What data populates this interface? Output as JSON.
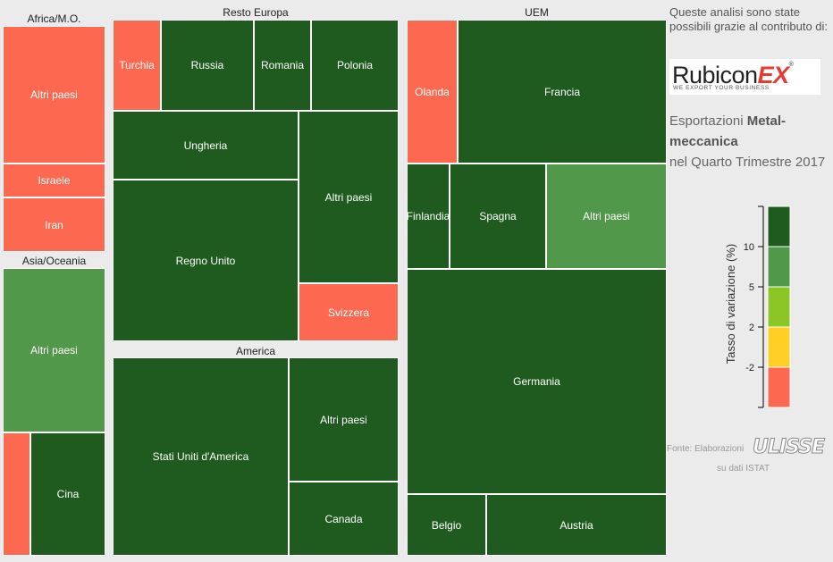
{
  "sidebar": {
    "intro": "Queste analisi sono state possibili grazie al contributo di:",
    "logo": {
      "word": "Rubicon",
      "ex": "EX",
      "reg": "®",
      "tagline": "WE EXPORT YOUR BUSINESS"
    },
    "title_pre": "Esportazioni ",
    "title_bold": "Metal-meccanica",
    "title_post": "nel Quarto Trimestre 2017",
    "source_prefix": "Fonte: Elaborazioni",
    "source_brand": "ULISSE",
    "source_suffix": "su dati ISTAT"
  },
  "colors": {
    "dark_green": "#1f5a1f",
    "mid_green": "#52984a",
    "light_green": "#8cc526",
    "yellow": "#ffcf26",
    "red": "#fd6950",
    "background": "#ebebeb"
  },
  "chart_data": {
    "type": "treemap",
    "measure": "Esportazioni Metal-meccanica, Quarto Trimestre 2017",
    "color_scale": {
      "label": "Tasso di variazione (%)",
      "ticks": [
        "10",
        "5",
        "2",
        "-2"
      ],
      "bands": [
        {
          "range": "> 10",
          "color": "#1f5a1f"
        },
        {
          "range": "5 – 10",
          "color": "#52984a"
        },
        {
          "range": "2 – 5",
          "color": "#8cc526"
        },
        {
          "range": "-2 – 2",
          "color": "#ffcf26"
        },
        {
          "range": "< -2",
          "color": "#fd6950"
        }
      ]
    },
    "groups": [
      {
        "name": "Africa/M.O.",
        "items": [
          {
            "label": "Altri paesi",
            "color": "#fd6950"
          },
          {
            "label": "Israele",
            "color": "#fd6950"
          },
          {
            "label": "Iran",
            "color": "#fd6950"
          }
        ]
      },
      {
        "name": "Asia/Oceania",
        "items": [
          {
            "label": "Altri paesi",
            "color": "#52984a"
          },
          {
            "label": "",
            "color": "#fd6950"
          },
          {
            "label": "Cina",
            "color": "#1f5a1f"
          }
        ]
      },
      {
        "name": "Resto Europa",
        "items": [
          {
            "label": "Turchia",
            "color": "#fd6950"
          },
          {
            "label": "Russia",
            "color": "#1f5a1f"
          },
          {
            "label": "Romania",
            "color": "#1f5a1f"
          },
          {
            "label": "Polonia",
            "color": "#1f5a1f"
          },
          {
            "label": "Ungheria",
            "color": "#1f5a1f"
          },
          {
            "label": "Altri paesi",
            "color": "#1f5a1f"
          },
          {
            "label": "Regno Unito",
            "color": "#1f5a1f"
          },
          {
            "label": "Svizzera",
            "color": "#fd6950"
          }
        ]
      },
      {
        "name": "America",
        "items": [
          {
            "label": "Stati Uniti d'America",
            "color": "#1f5a1f"
          },
          {
            "label": "Altri paesi",
            "color": "#1f5a1f"
          },
          {
            "label": "Canada",
            "color": "#1f5a1f"
          }
        ]
      },
      {
        "name": "UEM",
        "items": [
          {
            "label": "Olanda",
            "color": "#fd6950"
          },
          {
            "label": "Francia",
            "color": "#1f5a1f"
          },
          {
            "label": "Finlandia",
            "color": "#1f5a1f"
          },
          {
            "label": "Spagna",
            "color": "#1f5a1f"
          },
          {
            "label": "Altri paesi",
            "color": "#52984a"
          },
          {
            "label": "Germania",
            "color": "#1f5a1f"
          },
          {
            "label": "Belgio",
            "color": "#1f5a1f"
          },
          {
            "label": "Austria",
            "color": "#1f5a1f"
          }
        ]
      }
    ]
  }
}
